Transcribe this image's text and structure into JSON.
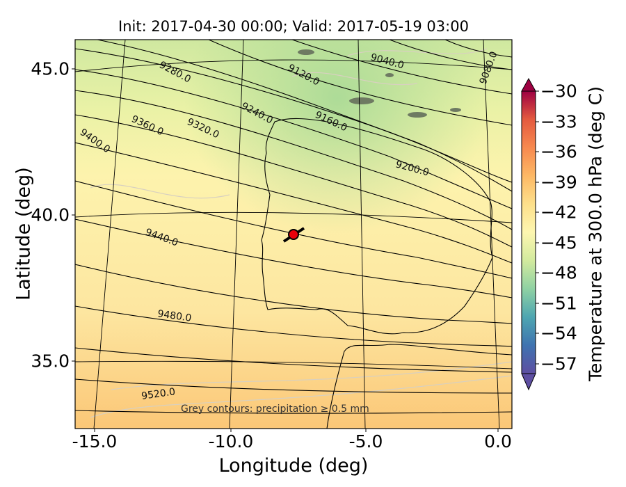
{
  "map": {
    "title": "Init: 2017-04-30 00:00; Valid: 2017-05-19 03:00",
    "x_label": "Longitude (deg)",
    "y_label": "Latitude (deg)",
    "x_ticks": [
      "-15.0",
      "-10.0",
      "-5.0",
      "0.0"
    ],
    "y_ticks": [
      "45.0",
      "40.0",
      "35.0"
    ],
    "note": "Grey contours: precipitation ≥ 0.5 mm",
    "colorbar": {
      "label": "Temperature at 300.0 hPa (deg C)",
      "ticks": [
        "−30",
        "−33",
        "−36",
        "−39",
        "−42",
        "−45",
        "−48",
        "−51",
        "−54",
        "−57"
      ],
      "colors": [
        "#9e0142",
        "#c92c4b",
        "#e45a3f",
        "#f7894f",
        "#fdb865",
        "#fde08b",
        "#fdf6b0",
        "#d2ea9e",
        "#8fd1a3",
        "#4ea6b1",
        "#3f73b0",
        "#5e4fa2"
      ]
    },
    "contour_labels": [
      "9280.0",
      "9120.0",
      "9040.0",
      "9080.0",
      "9360.0",
      "9320.0",
      "9240.0",
      "9160.0",
      "9200.0",
      "9400.0",
      "9440.0",
      "9480.0",
      "9520.0"
    ],
    "marker_color": "#e8000a",
    "background_color": "#fdf0aa"
  }
}
